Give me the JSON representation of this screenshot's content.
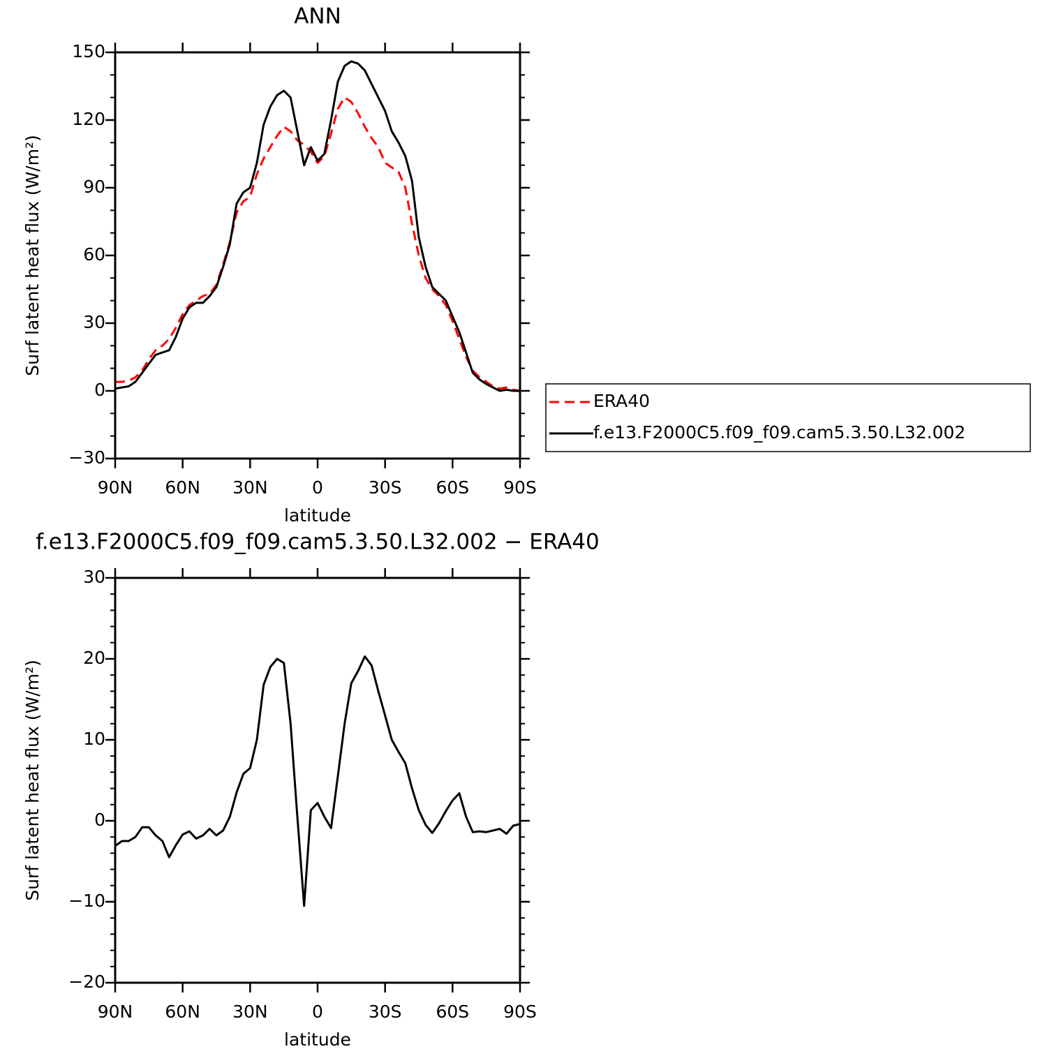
{
  "chart_data": [
    {
      "type": "line",
      "title": "ANN",
      "xlabel": "latitude",
      "ylabel": "Surf latent heat flux (W/m²)",
      "x": [
        90,
        87,
        84,
        81,
        78,
        75,
        72,
        69,
        66,
        63,
        60,
        57,
        54,
        51,
        48,
        45,
        42,
        39,
        36,
        33,
        30,
        27,
        24,
        21,
        18,
        15,
        12,
        9,
        6,
        3,
        0,
        -3,
        -6,
        -9,
        -12,
        -15,
        -18,
        -21,
        -24,
        -27,
        -30,
        -33,
        -36,
        -39,
        -42,
        -45,
        -48,
        -51,
        -54,
        -57,
        -60,
        -63,
        -66,
        -69,
        -72,
        -75,
        -78,
        -81,
        -84,
        -87,
        -90
      ],
      "series": [
        {
          "name": "ERA40",
          "color": "#ff0000",
          "dashed": true,
          "values": [
            4,
            4,
            4.5,
            6,
            9,
            14,
            18,
            20,
            23,
            28,
            34,
            38,
            40,
            42,
            43,
            47,
            56,
            66,
            79,
            84,
            86,
            96,
            103,
            108,
            113,
            117,
            115,
            111,
            109,
            106,
            101,
            104,
            114,
            125,
            130,
            128,
            123,
            117,
            112,
            108,
            101,
            99,
            97,
            90,
            74,
            60,
            50,
            45,
            42,
            38,
            31,
            23,
            15,
            9,
            6,
            4,
            2,
            1,
            1.5,
            0.5,
            0
          ]
        },
        {
          "name": "f.e13.F2000C5.f09_f09.cam5.3.50.L32.002",
          "color": "#000000",
          "dashed": false,
          "values": [
            1,
            1.5,
            2,
            4,
            8,
            12,
            16,
            17,
            18,
            24,
            32,
            37,
            39,
            39,
            42,
            46,
            55,
            65,
            83,
            88,
            90,
            101,
            118,
            126,
            131,
            133,
            130,
            115,
            100,
            108,
            102,
            105,
            120,
            137,
            144,
            146,
            145,
            142,
            136,
            130,
            124,
            115,
            110,
            104,
            93,
            68,
            55,
            46,
            43,
            40,
            33,
            26,
            17,
            8,
            5,
            3,
            1.5,
            0,
            0.5,
            0,
            0
          ]
        }
      ],
      "xlim": [
        90,
        -90
      ],
      "xticks": [
        {
          "value": 90,
          "label": "90N"
        },
        {
          "value": 60,
          "label": "60N"
        },
        {
          "value": 30,
          "label": "30N"
        },
        0,
        {
          "value": -30,
          "label": "30S"
        },
        {
          "value": -60,
          "label": "60S"
        },
        {
          "value": -90,
          "label": "90S"
        }
      ],
      "ylim": [
        -30,
        150
      ],
      "yticks": [
        {
          "value": -30,
          "label": "−30"
        },
        0,
        30,
        60,
        90,
        120,
        150
      ],
      "yminorticks": [
        -20,
        -10,
        10,
        20,
        40,
        50,
        70,
        80,
        100,
        110,
        130,
        140
      ],
      "legend": "outside-right"
    },
    {
      "type": "line",
      "title": "f.e13.F2000C5.f09_f09.cam5.3.50.L32.002 − ERA40",
      "xlabel": "latitude",
      "ylabel": "Surf latent heat flux (W/m²)",
      "x": [
        90,
        87,
        84,
        81,
        78,
        75,
        72,
        69,
        66,
        63,
        60,
        57,
        54,
        51,
        48,
        45,
        42,
        39,
        36,
        33,
        30,
        27,
        24,
        21,
        18,
        15,
        12,
        9,
        6,
        3,
        0,
        -3,
        -6,
        -9,
        -12,
        -15,
        -18,
        -21,
        -24,
        -27,
        -30,
        -33,
        -36,
        -39,
        -42,
        -45,
        -48,
        -51,
        -54,
        -57,
        -60,
        -63,
        -66,
        -69,
        -72,
        -75,
        -78,
        -81,
        -84,
        -87,
        -90
      ],
      "color": "#000000",
      "values": [
        -3.1,
        -2.5,
        -2.5,
        -2,
        -0.8,
        -0.8,
        -1.8,
        -2.5,
        -4.5,
        -3,
        -1.7,
        -1.3,
        -2.2,
        -1.8,
        -1,
        -1.8,
        -1.2,
        0.5,
        3.5,
        5.8,
        6.5,
        10,
        16.8,
        19,
        20,
        19.5,
        12,
        0.5,
        -10.5,
        1.3,
        2.2,
        0.5,
        -0.9,
        5.5,
        12,
        17,
        18.5,
        20.3,
        19.2,
        16,
        13,
        10,
        8.5,
        7.1,
        4,
        1.3,
        -0.5,
        -1.5,
        -0.3,
        1.2,
        2.5,
        3.4,
        0.5,
        -1.4,
        -1.3,
        -1.4,
        -1.2,
        -1,
        -1.6,
        -0.6,
        -0.4
      ],
      "xlim": [
        90,
        -90
      ],
      "xticks": [
        {
          "value": 90,
          "label": "90N"
        },
        {
          "value": 60,
          "label": "60N"
        },
        {
          "value": 30,
          "label": "30N"
        },
        0,
        {
          "value": -30,
          "label": "30S"
        },
        {
          "value": -60,
          "label": "60S"
        },
        {
          "value": -90,
          "label": "90S"
        }
      ],
      "ylim": [
        -20,
        30
      ],
      "yticks": [
        {
          "value": -20,
          "label": "−20"
        },
        {
          "value": -10,
          "label": "−10"
        },
        0,
        10,
        20,
        30
      ],
      "yminorticks": [
        -18,
        -16,
        -14,
        -12,
        -8,
        -6,
        -4,
        -2,
        2,
        4,
        6,
        8,
        12,
        14,
        16,
        18,
        22,
        24,
        26,
        28
      ]
    }
  ]
}
